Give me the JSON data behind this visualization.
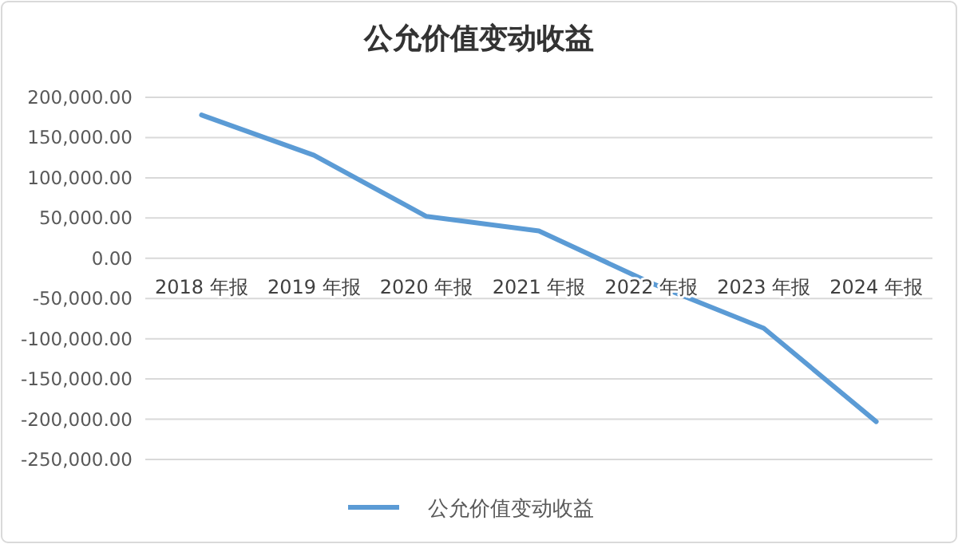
{
  "chart_data": {
    "type": "line",
    "title": "公允价值变动收益",
    "categories": [
      "2018 年报",
      "2019 年报",
      "2020 年报",
      "2021 年报",
      "2022 年报",
      "2023 年报",
      "2024 年报"
    ],
    "series": [
      {
        "name": "公允价值变动收益",
        "color": "#5b9bd5",
        "values": [
          178000,
          128000,
          52000,
          34000,
          -31000,
          -87000,
          -203000
        ]
      }
    ],
    "ylim": [
      -250000,
      200000
    ],
    "yticks": [
      {
        "value": -250000,
        "label": "-250,000.00"
      },
      {
        "value": -200000,
        "label": "-200,000.00"
      },
      {
        "value": -150000,
        "label": "-150,000.00"
      },
      {
        "value": -100000,
        "label": "-100,000.00"
      },
      {
        "value": -50000,
        "label": "-50,000.00"
      },
      {
        "value": 0,
        "label": "0.00"
      },
      {
        "value": 50000,
        "label": "50,000.00"
      },
      {
        "value": 100000,
        "label": "100,000.00"
      },
      {
        "value": 150000,
        "label": "150,000.00"
      },
      {
        "value": 200000,
        "label": "200,000.00"
      }
    ],
    "grid": "y",
    "legend": "bottom",
    "marker": "none",
    "line_style": "solid"
  }
}
